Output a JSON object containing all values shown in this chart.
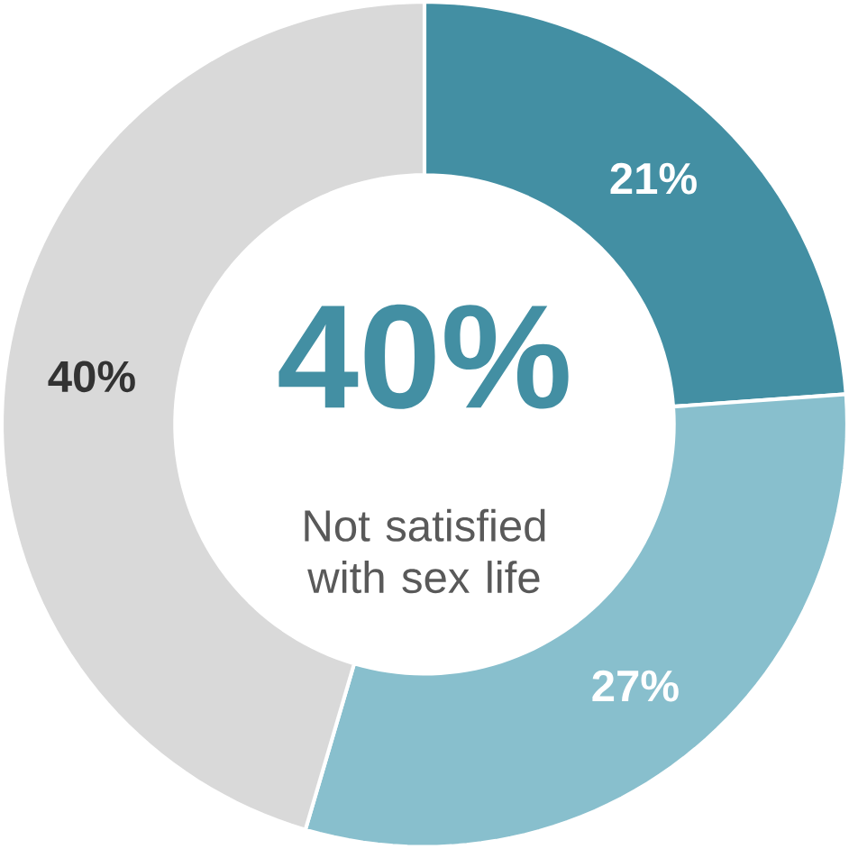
{
  "chart_data": {
    "type": "donut",
    "categories": [
      null,
      null,
      null
    ],
    "values": [
      21,
      27,
      40
    ],
    "colors": [
      "#438fa3",
      "#88bfcd",
      "#d9d9d9"
    ],
    "value_labels": [
      "21%",
      "27%",
      "40%"
    ],
    "annotations": [
      "40%",
      "Not satisfied with sex life"
    ]
  }
}
